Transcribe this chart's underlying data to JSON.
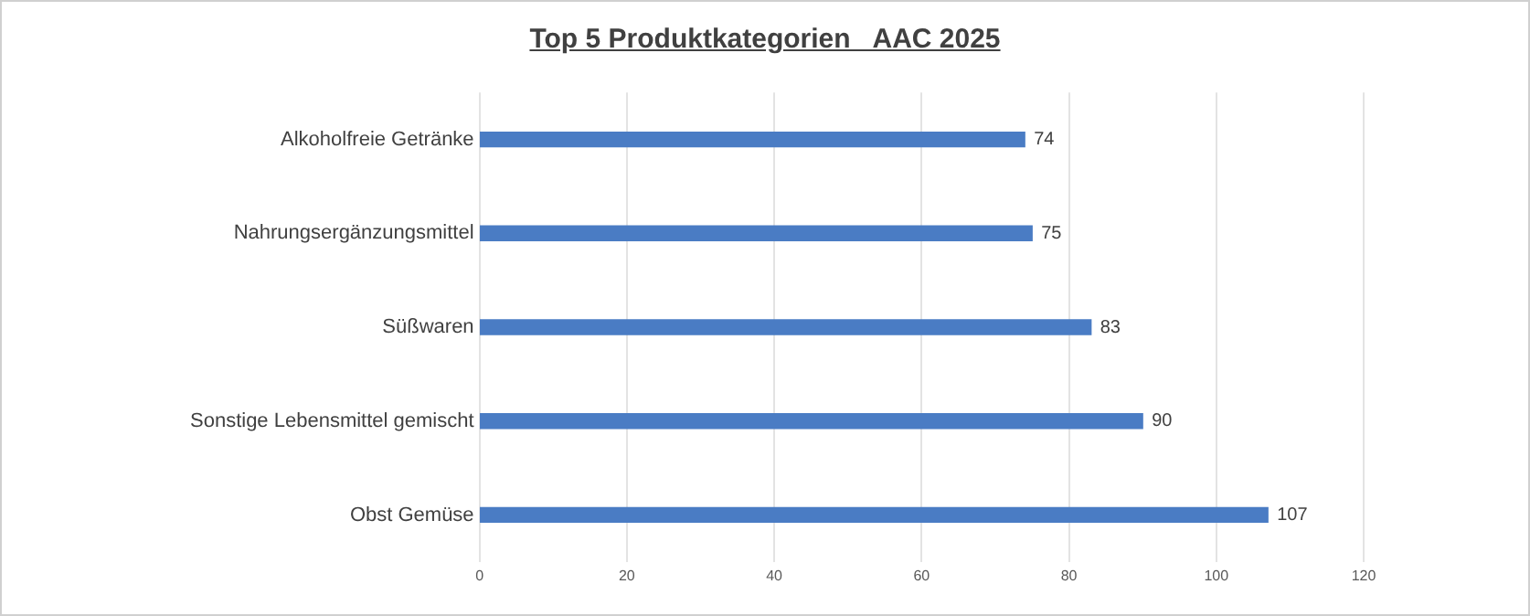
{
  "chart_data": {
    "type": "bar",
    "orientation": "horizontal",
    "title": "Top 5 Produktkategorien   AAC 2025",
    "categories": [
      "Alkoholfreie Getränke",
      "Nahrungsergänzungsmittel",
      "Süßwaren",
      "Sonstige Lebensmittel gemischt",
      "Obst Gemüse"
    ],
    "values": [
      74,
      75,
      83,
      90,
      107
    ],
    "color": "#4a7cc4",
    "xlim": [
      0,
      120
    ],
    "xticks": [
      0,
      20,
      40,
      60,
      80,
      100,
      120
    ],
    "grid": "x",
    "data_labels": true,
    "legend": false
  }
}
